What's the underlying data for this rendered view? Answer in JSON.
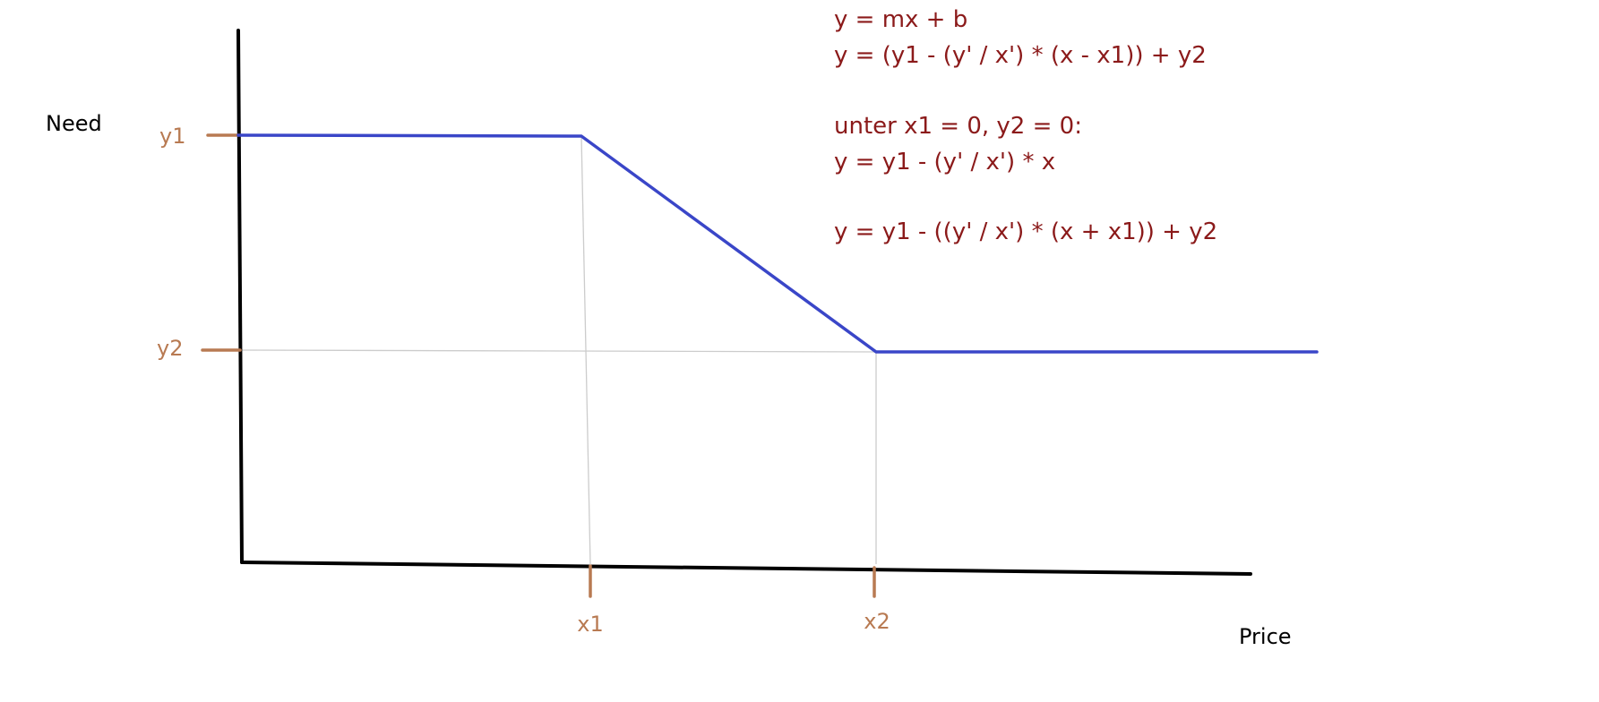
{
  "axes": {
    "y_label": "Need",
    "x_label": "Price"
  },
  "ticks": {
    "y1": "y1",
    "y2": "y2",
    "x1": "x1",
    "x2": "x2"
  },
  "equations": [
    "y = mx + b",
    "y = (y1 - (y' / x') * (x - x1)) + y2",
    "unter x1 = 0, y2 = 0:",
    "y = y1 - (y' / x') * x",
    "y = y1 - ((y' / x') * (x + x1)) + y2"
  ],
  "colors": {
    "axis": "#000000",
    "curve": "#3a46c8",
    "tick": "#b87a52",
    "guide": "#cccccc",
    "equation": "#8b1a1a",
    "label": "#000000"
  }
}
